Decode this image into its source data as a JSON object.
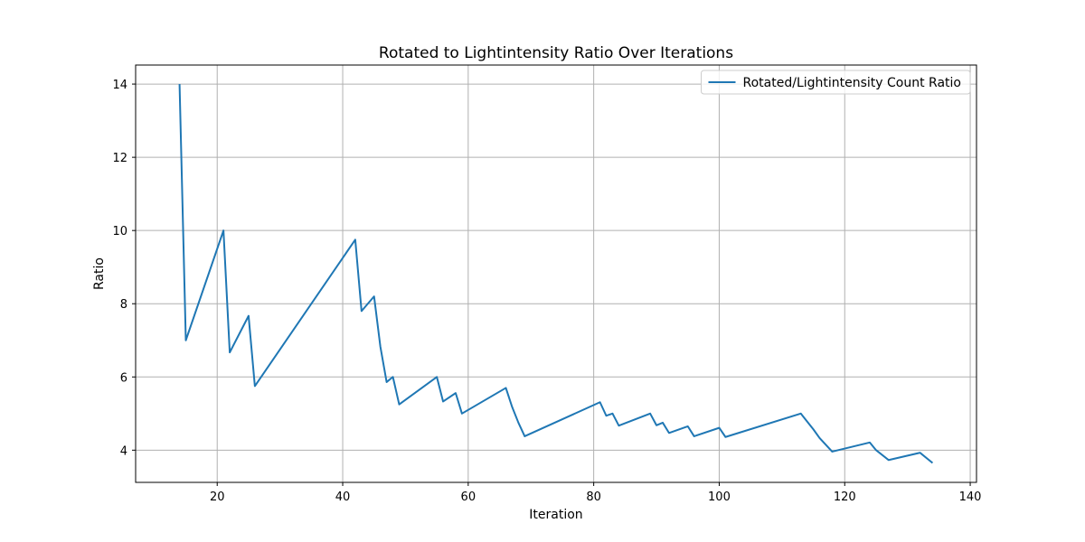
{
  "chart_data": {
    "type": "line",
    "title": "Rotated to Lightintensity Ratio Over Iterations",
    "xlabel": "Iteration",
    "ylabel": "Ratio",
    "xlim": [
      7.0,
      141.0
    ],
    "ylim": [
      3.12,
      14.52
    ],
    "xticks": [
      20,
      40,
      60,
      80,
      100,
      120,
      140
    ],
    "yticks": [
      4,
      6,
      8,
      10,
      12,
      14
    ],
    "grid": true,
    "legend_position": "top-right",
    "series": [
      {
        "name": "Rotated/Lightintensity Count Ratio",
        "color": "#1f77b4",
        "x": [
          14,
          15,
          21,
          22,
          25,
          26,
          42,
          43,
          45,
          46,
          47,
          48,
          49,
          55,
          56,
          58,
          59,
          66,
          67,
          68,
          69,
          81,
          82,
          83,
          84,
          89,
          90,
          91,
          92,
          95,
          96,
          100,
          101,
          113,
          115,
          116,
          118,
          124,
          125,
          127,
          132,
          134
        ],
        "y": [
          14.0,
          7.0,
          10.0,
          6.67,
          7.67,
          5.75,
          9.75,
          7.8,
          8.2,
          6.83,
          5.86,
          6.0,
          5.25,
          6.0,
          5.33,
          5.56,
          5.0,
          5.7,
          5.18,
          4.75,
          4.38,
          5.31,
          4.94,
          5.0,
          4.67,
          5.0,
          4.68,
          4.75,
          4.47,
          4.65,
          4.38,
          4.61,
          4.36,
          5.0,
          4.57,
          4.33,
          3.96,
          4.21,
          4.0,
          3.73,
          3.93,
          3.65
        ]
      }
    ]
  }
}
